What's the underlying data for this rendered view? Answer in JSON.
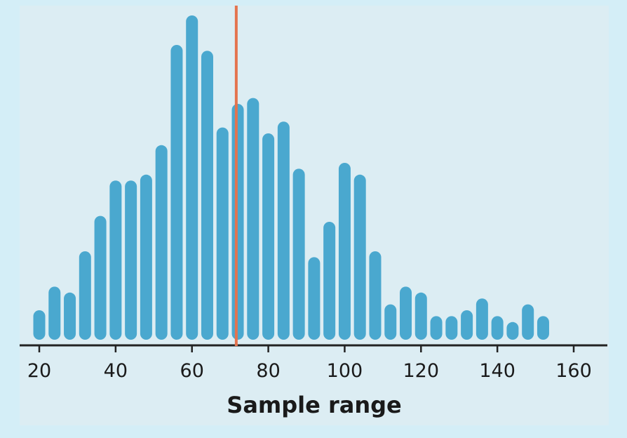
{
  "chart_data": {
    "type": "bar",
    "title": "",
    "xlabel": "Sample range",
    "ylabel": "",
    "xlim": [
      17,
      168
    ],
    "xticks": [
      20,
      40,
      60,
      80,
      100,
      120,
      140,
      160
    ],
    "x": [
      20,
      24,
      28,
      32,
      36,
      40,
      44,
      48,
      52,
      56,
      60,
      64,
      68,
      72,
      76,
      80,
      84,
      88,
      92,
      96,
      100,
      104,
      108,
      112,
      116,
      120,
      124,
      128,
      132,
      136,
      140,
      144,
      148,
      152
    ],
    "values": [
      5,
      9,
      8,
      15,
      21,
      27,
      27,
      28,
      33,
      50,
      55,
      49,
      36,
      40,
      41,
      35,
      37,
      29,
      14,
      20,
      30,
      28,
      15,
      6,
      9,
      8,
      4,
      4,
      5,
      7,
      4,
      3,
      6,
      4
    ],
    "reference_line": {
      "x": 71.6,
      "color": "#e4734e"
    },
    "bar_color": "#4aa8cf",
    "grid": false,
    "legend": "none"
  }
}
